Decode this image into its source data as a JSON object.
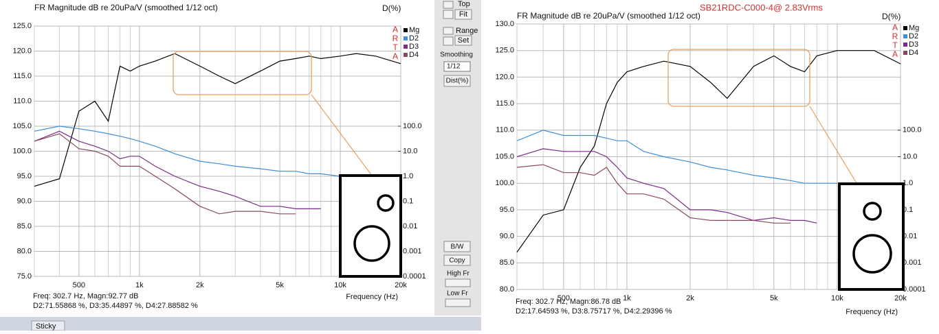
{
  "chart_data": [
    {
      "type": "line",
      "title": "FR Magnitude dB re 20uPa/V (smoothed 1/12 oct)",
      "y2_label": "D(%)",
      "letters": [
        "A",
        "R",
        "T",
        "A"
      ],
      "x_label": "Frequency (Hz)",
      "footer": [
        "Freq: 302.7 Hz, Magn:92.77 dB",
        "D2:71.55868 %, D3:35.44897 %, D4:27.88582 %"
      ],
      "xscale": "log",
      "xlim": [
        300,
        20000
      ],
      "xticks": [
        500,
        {
          "value": 1000,
          "label": "1k"
        },
        {
          "value": 2000,
          "label": "2k"
        },
        {
          "value": 5000,
          "label": "5k"
        },
        {
          "value": 10000,
          "label": "10k"
        },
        {
          "value": 20000,
          "label": "20k"
        }
      ],
      "x_minor_ticks": [
        300,
        400,
        600,
        700,
        800,
        900,
        3000,
        4000,
        6000,
        7000,
        8000,
        9000
      ],
      "ylim": [
        75,
        125
      ],
      "yticks": [
        {
          "value": 75,
          "label": "75.0"
        },
        {
          "value": 80,
          "label": "80.0"
        },
        {
          "value": 85,
          "label": "85.0"
        },
        {
          "value": 90,
          "label": "90.0"
        },
        {
          "value": 95,
          "label": "95.0"
        },
        {
          "value": 100,
          "label": "100.0"
        },
        {
          "value": 105,
          "label": "105.0"
        },
        {
          "value": 110,
          "label": "110.0"
        },
        {
          "value": 115,
          "label": "115.0"
        },
        {
          "value": 120,
          "label": "120.0"
        },
        {
          "value": 125,
          "label": "125.0"
        }
      ],
      "y2scale": "log",
      "y2lim": [
        0.0001,
        1000000
      ],
      "y2ticks": [
        0.0001,
        0.001,
        0.01,
        0.1,
        {
          "value": 1,
          "label": "1.0"
        },
        {
          "value": 10,
          "label": "10.0"
        },
        {
          "value": 100,
          "label": "100.0"
        }
      ],
      "grid": true,
      "x": [
        300,
        400,
        500,
        600,
        700,
        800,
        900,
        1000,
        1200,
        1500,
        2000,
        2500,
        3000,
        4000,
        5000,
        6000,
        7000,
        8000,
        10000,
        12000,
        15000,
        20000
      ],
      "series": [
        {
          "name": "Mg",
          "color": "#000000",
          "values": [
            93,
            94.5,
            108,
            110,
            106,
            117,
            116,
            117,
            118,
            119.5,
            117,
            115,
            113.5,
            116,
            118,
            118.5,
            119,
            118.5,
            119,
            119.5,
            119,
            117.5
          ]
        },
        {
          "name": "D2",
          "color": "#3a8fd8",
          "values": [
            104,
            105,
            104.5,
            104,
            103.5,
            103,
            102.5,
            102,
            101,
            99.5,
            98,
            97.5,
            97,
            96.5,
            96,
            96,
            95.5,
            95.5,
            95,
            null,
            null,
            null
          ]
        },
        {
          "name": "D3",
          "color": "#7a2a8a",
          "values": [
            102,
            104,
            102,
            101,
            100,
            98.5,
            99,
            99,
            97,
            95,
            93,
            92,
            91,
            89,
            89,
            88.5,
            88.5,
            88.5,
            null,
            null,
            null,
            null
          ]
        },
        {
          "name": "D4",
          "color": "#8a4a5a",
          "values": [
            102,
            103.5,
            100.5,
            100,
            99,
            97,
            97,
            97,
            95,
            92.5,
            89,
            87.5,
            88,
            88,
            87.5,
            87.5,
            null,
            null,
            null,
            null,
            null,
            null
          ]
        }
      ]
    },
    {
      "type": "line",
      "title": "FR Magnitude dB re 20uPa/V (smoothed 1/12 oct)",
      "subtitle": "SB21RDC-C000-4@ 2.83Vrms",
      "y2_label": "D(%)",
      "letters": [
        "A",
        "R",
        "T",
        "A"
      ],
      "x_label": "Frequency (Hz)",
      "footer": [
        "Freq: 302.7 Hz, Magn:86.78 dB",
        "D2:17.64593 %, D3:8.75717 %, D4:2.29396 %"
      ],
      "xscale": "log",
      "xlim": [
        300,
        20000
      ],
      "xticks": [
        500,
        {
          "value": 1000,
          "label": "1k"
        },
        {
          "value": 2000,
          "label": "2k"
        },
        {
          "value": 5000,
          "label": "5k"
        },
        {
          "value": 10000,
          "label": "10k"
        },
        {
          "value": 20000,
          "label": "20k"
        }
      ],
      "x_minor_ticks": [
        300,
        400,
        600,
        700,
        800,
        900,
        3000,
        4000,
        6000,
        7000,
        8000,
        9000
      ],
      "ylim": [
        80,
        130
      ],
      "yticks": [
        {
          "value": 80,
          "label": "80.0"
        },
        {
          "value": 85,
          "label": "85.0"
        },
        {
          "value": 90,
          "label": "90.0"
        },
        {
          "value": 95,
          "label": "95.0"
        },
        {
          "value": 100,
          "label": "100.0"
        },
        {
          "value": 105,
          "label": "105.0"
        },
        {
          "value": 110,
          "label": "110.0"
        },
        {
          "value": 115,
          "label": "115.0"
        },
        {
          "value": 120,
          "label": "120.0"
        },
        {
          "value": 125,
          "label": "125.0"
        },
        {
          "value": 130,
          "label": "130.0"
        }
      ],
      "y2scale": "log",
      "y2lim": [
        0.0001,
        1000000
      ],
      "y2ticks": [
        0.0001,
        0.001,
        0.01,
        0.1,
        {
          "value": 1,
          "label": "1.0"
        },
        {
          "value": 10,
          "label": "10.0"
        },
        {
          "value": 100,
          "label": "100.0"
        }
      ],
      "grid": true,
      "x": [
        300,
        400,
        500,
        600,
        700,
        800,
        900,
        1000,
        1200,
        1500,
        2000,
        2500,
        3000,
        4000,
        5000,
        6000,
        7000,
        8000,
        10000,
        12000,
        15000,
        20000
      ],
      "series": [
        {
          "name": "Mg",
          "color": "#000000",
          "values": [
            87,
            94,
            95,
            103,
            107,
            115,
            119,
            121,
            122,
            123,
            122,
            119,
            116,
            122,
            124,
            122,
            121,
            124,
            125,
            125,
            125,
            122.5
          ]
        },
        {
          "name": "D2",
          "color": "#3a8fd8",
          "values": [
            108,
            110,
            109,
            109,
            109,
            108.5,
            108,
            108,
            106,
            105,
            104,
            103,
            102.5,
            101.5,
            101,
            100.5,
            100,
            100,
            100,
            null,
            null,
            null
          ]
        },
        {
          "name": "D3",
          "color": "#7a2a8a",
          "values": [
            105,
            106.5,
            106,
            106,
            106,
            105,
            103,
            101,
            100,
            99,
            95,
            95,
            94.5,
            93,
            93.5,
            93,
            93,
            92.5,
            null,
            null,
            null,
            null
          ]
        },
        {
          "name": "D4",
          "color": "#8a4a5a",
          "values": [
            103,
            103.5,
            102,
            102,
            101.5,
            103,
            100,
            98,
            98,
            97,
            93.5,
            93,
            93,
            93,
            92.5,
            92.5,
            null,
            null,
            null,
            null,
            null,
            null
          ]
        }
      ]
    }
  ],
  "toolbar": {
    "top": "Top",
    "fit": "Fit",
    "range": "Range",
    "set": "Set",
    "smoothing": "Smoothing",
    "smoothing_value": "1/12",
    "dist": "Dist(%)",
    "bw": "B/W",
    "copy": "Copy",
    "high_fr": "High Fr",
    "low_fr": "Low Fr"
  },
  "taskbar": {
    "item": "Sticky"
  }
}
